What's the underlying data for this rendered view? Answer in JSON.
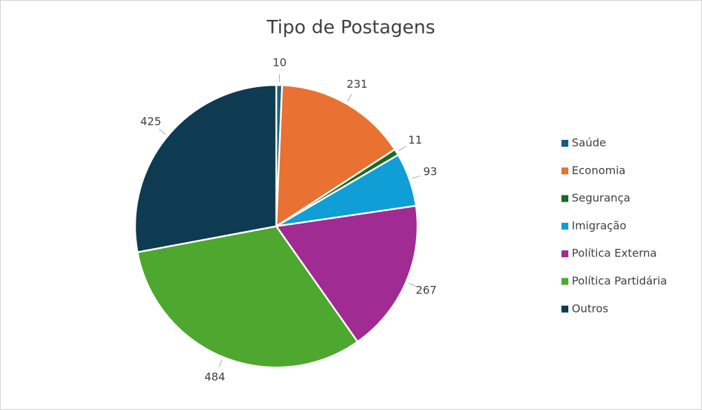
{
  "chart_data": {
    "type": "pie",
    "title": "Tipo de Postagens",
    "categories": [
      "Saúde",
      "Economia",
      "Segurança",
      "Imigração",
      "Política Externa",
      "Política Partidária",
      "Outros"
    ],
    "values": [
      10,
      231,
      11,
      93,
      267,
      484,
      425
    ],
    "colors": [
      "#156082",
      "#e97132",
      "#196b24",
      "#0f9ed5",
      "#a02b93",
      "#4ea72e",
      "#0e3a52"
    ],
    "legend": "right"
  }
}
